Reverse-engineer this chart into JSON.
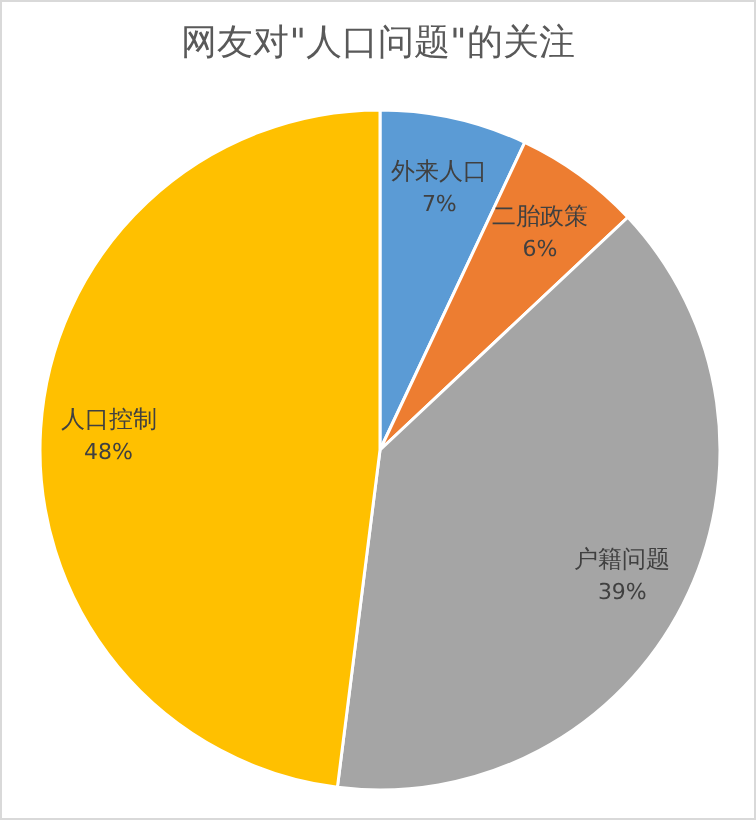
{
  "chart_data": {
    "type": "pie",
    "title": "网友对\"人口问题\"的关注",
    "categories": [
      "外来人口",
      "二胎政策",
      "户籍问题",
      "人口控制"
    ],
    "values": [
      7,
      6,
      39,
      48
    ],
    "colors": [
      "#5b9bd5",
      "#ed7d31",
      "#a5a5a5",
      "#ffc000"
    ],
    "value_labels": [
      "7%",
      "6%",
      "39%",
      "48%"
    ]
  }
}
